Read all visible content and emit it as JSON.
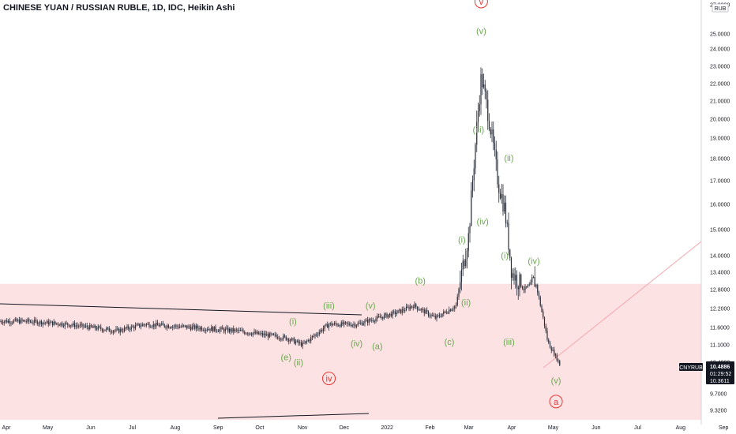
{
  "header": {
    "title": "CHINESE YUAN / RUSSIAN RUBLE, 1D, IDC, Heikin Ashi"
  },
  "colors": {
    "zone": "#fde2e4",
    "candle": "#2a2e39",
    "green_label": "#6aa84f",
    "red_label": "#e53935",
    "trendline": "#131722",
    "projection": "#f3a6ae",
    "tag_bg": "#131722"
  },
  "chart_data": {
    "type": "candlestick",
    "symbol": "CNYRUB",
    "currency_badge": "RUB",
    "y_ticks": [
      "27.0000",
      "25.0000",
      "24.0000",
      "23.0000",
      "22.0000",
      "21.0000",
      "20.0000",
      "19.0000",
      "18.0000",
      "17.0000",
      "16.0000",
      "15.0000",
      "14.0000",
      "13.4000",
      "12.8000",
      "12.2000",
      "11.6000",
      "11.1000",
      "10.4800",
      "9.7000",
      "9.3200"
    ],
    "x_ticks": [
      "Apr",
      "May",
      "Jun",
      "Jul",
      "Aug",
      "Sep",
      "Oct",
      "Nov",
      "Dec",
      "2022",
      "Feb",
      "Mar",
      "Apr",
      "May",
      "Jun",
      "Jul",
      "Aug",
      "Sep"
    ],
    "price_tags": {
      "price": "10.4886",
      "countdown": "01:29:52",
      "low": "10.3611",
      "symbol_tag": "CNYRUB"
    },
    "zone_range": [
      9.1,
      13.0
    ],
    "series": [
      {
        "date": "2021-03-01",
        "close": 11.8
      },
      {
        "date": "2021-04-15",
        "close": 11.8
      },
      {
        "date": "2021-05-15",
        "close": 11.7
      },
      {
        "date": "2021-06-20",
        "close": 11.5
      },
      {
        "date": "2021-07-10",
        "close": 11.7
      },
      {
        "date": "2021-08-15",
        "close": 11.6
      },
      {
        "date": "2021-09-15",
        "close": 11.5
      },
      {
        "date": "2021-10-20",
        "close": 11.3
      },
      {
        "date": "2021-11-01",
        "close": 11.1
      },
      {
        "date": "2021-11-20",
        "close": 11.7
      },
      {
        "date": "2021-12-10",
        "close": 11.7
      },
      {
        "date": "2022-01-10",
        "close": 12.1
      },
      {
        "date": "2022-01-20",
        "close": 12.3
      },
      {
        "date": "2022-02-05",
        "close": 11.9
      },
      {
        "date": "2022-02-20",
        "close": 12.3
      },
      {
        "date": "2022-03-01",
        "close": 14.8
      },
      {
        "date": "2022-03-05",
        "close": 18.0
      },
      {
        "date": "2022-03-10",
        "close": 22.4
      },
      {
        "date": "2022-03-15",
        "close": 20.3
      },
      {
        "date": "2022-03-22",
        "close": 17.0
      },
      {
        "date": "2022-03-27",
        "close": 15.8
      },
      {
        "date": "2022-04-01",
        "close": 13.4
      },
      {
        "date": "2022-04-10",
        "close": 12.8
      },
      {
        "date": "2022-04-18",
        "close": 13.1
      },
      {
        "date": "2022-04-27",
        "close": 11.2
      },
      {
        "date": "2022-05-06",
        "close": 10.4
      }
    ],
    "wave_labels": [
      {
        "text": "v",
        "date": "2022-03-10",
        "price": 27.0,
        "color": "red",
        "circled": true
      },
      {
        "text": "(v)",
        "date": "2022-03-10",
        "price": 25.0,
        "color": "green"
      },
      {
        "text": "(iii)",
        "date": "2022-03-08",
        "price": 19.3,
        "color": "green"
      },
      {
        "text": "(ii)",
        "date": "2022-03-30",
        "price": 17.9,
        "color": "green"
      },
      {
        "text": "(iv)",
        "date": "2022-03-11",
        "price": 15.2,
        "color": "green"
      },
      {
        "text": "(i)",
        "date": "2022-02-24",
        "price": 14.5,
        "color": "green"
      },
      {
        "text": "(i)",
        "date": "2022-03-27",
        "price": 13.9,
        "color": "green"
      },
      {
        "text": "(iv)",
        "date": "2022-04-17",
        "price": 13.7,
        "color": "green"
      },
      {
        "text": "(b)",
        "date": "2022-01-25",
        "price": 13.0,
        "color": "green"
      },
      {
        "text": "(ii)",
        "date": "2022-02-27",
        "price": 12.3,
        "color": "green"
      },
      {
        "text": "(iii)",
        "date": "2021-11-20",
        "price": 12.2,
        "color": "green"
      },
      {
        "text": "(v)",
        "date": "2021-12-20",
        "price": 12.2,
        "color": "green"
      },
      {
        "text": "(i)",
        "date": "2021-10-25",
        "price": 11.7,
        "color": "green"
      },
      {
        "text": "(iv)",
        "date": "2021-12-10",
        "price": 11.05,
        "color": "green"
      },
      {
        "text": "(a)",
        "date": "2021-12-25",
        "price": 10.95,
        "color": "green"
      },
      {
        "text": "(c)",
        "date": "2022-02-15",
        "price": 11.1,
        "color": "green"
      },
      {
        "text": "(iii)",
        "date": "2022-03-30",
        "price": 11.1,
        "color": "green"
      },
      {
        "text": "(e)",
        "date": "2021-10-20",
        "price": 10.55,
        "color": "green"
      },
      {
        "text": "(ii)",
        "date": "2021-10-29",
        "price": 10.4,
        "color": "green"
      },
      {
        "text": "iv",
        "date": "2021-11-20",
        "price": 10.0,
        "color": "red",
        "circled": true
      },
      {
        "text": "(v)",
        "date": "2022-05-03",
        "price": 9.95,
        "color": "green"
      },
      {
        "text": "a",
        "date": "2022-05-03",
        "price": 9.45,
        "color": "red",
        "circled": true
      }
    ]
  }
}
